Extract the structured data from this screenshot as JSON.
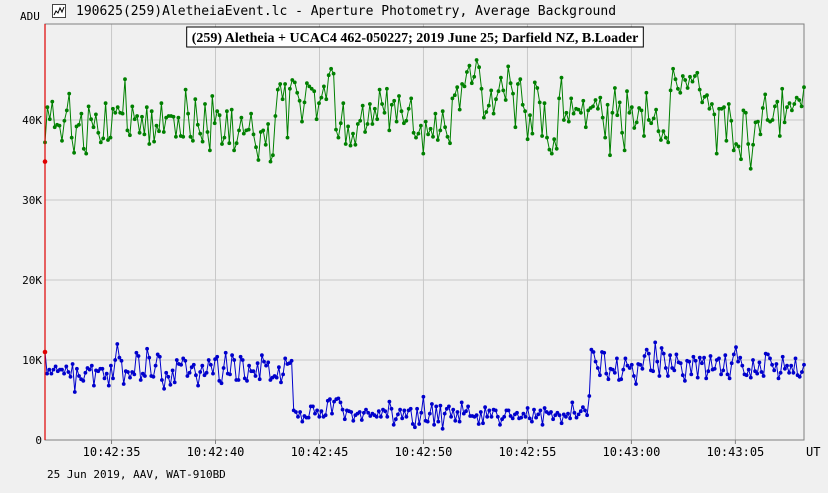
{
  "window": {
    "title": "190625(259)AletheiaEvent.lc - Aperture Photometry, Average Background",
    "icon": "chart-file-icon"
  },
  "footer": {
    "text": "25 Jun 2019, AAV, WAT-910BD"
  },
  "colors": {
    "background": "#f0f0f0",
    "grid": "#c8c8c8",
    "frame": "#808080",
    "series_upper": "#008000",
    "series_lower": "#0000cc",
    "cursor": "#e00000"
  },
  "chart_data": {
    "type": "line",
    "title": "(259) Aletheia + UCAC4 462-050227; 2019 June 25; Darfield NZ, B.Loader",
    "ylabel": "ADU",
    "xlabel": "UT",
    "ylim": [
      0,
      52000
    ],
    "yticks": [
      0,
      10000,
      20000,
      30000,
      40000
    ],
    "ytick_labels": [
      "0",
      "10K",
      "20K",
      "30K",
      "40K"
    ],
    "xlim": [
      "10:42:31.8",
      "10:43:08.3"
    ],
    "xticks": [
      "10:42:35",
      "10:42:40",
      "10:42:45",
      "10:42:50",
      "10:42:55",
      "10:43:00",
      "10:43:05"
    ],
    "grid": true,
    "cursor_time": "10:42:31.8",
    "cursor_values": [
      34800,
      11000
    ],
    "series": [
      {
        "values": [
          37200,
          41600,
          40100,
          42300,
          39100,
          39400,
          39300,
          37400,
          39900,
          41200,
          43300,
          37800,
          35900,
          39200,
          39400,
          40800,
          36400,
          35800,
          41700,
          40100,
          39100,
          40700,
          38400,
          37200,
          37700,
          42100,
          37500,
          37800,
          41400,
          40900,
          41600,
          40900,
          40800,
          45100,
          38700,
          38100,
          41700,
          40100,
          40500,
          38400,
          40400,
          38200,
          41600,
          37000,
          41100,
          37300,
          39300,
          38600,
          42100,
          38500,
          40300,
          40500,
          40500,
          40400,
          37900,
          40300,
          38000,
          37900,
          43800,
          40800,
          37900,
          37400,
          42600,
          39400,
          38300,
          37300,
          42000,
          38500,
          36200,
          43000,
          39600,
          41100,
          40600,
          37000,
          37800,
          41100,
          37100,
          41300,
          36200,
          37100,
          38700,
          40300,
          38300,
          38700,
          38800,
          40800,
          38200,
          36600,
          35000,
          38500,
          38700,
          36900,
          39500,
          34800,
          35600,
          40500,
          43800,
          44500,
          42600,
          44500,
          37800,
          43900,
          45000,
          44700,
          43400,
          42400,
          39800,
          42200,
          44600,
          44200,
          43900,
          43600,
          40100,
          42100,
          42800,
          44200,
          42600,
          45600,
          46400,
          45800,
          38800,
          37800,
          39600,
          42100,
          37000,
          39200,
          36800,
          38300,
          36900,
          39500,
          39900,
          41800,
          38500,
          39500,
          42000,
          39500,
          41400,
          40100,
          43800,
          42000,
          40900,
          43900,
          38700,
          41900,
          42400,
          39800,
          43000,
          41100,
          39600,
          39900,
          41400,
          42700,
          38400,
          37800,
          38300,
          39300,
          35800,
          39800,
          38200,
          38900,
          37900,
          40800,
          37500,
          38700,
          41100,
          39100,
          37900,
          37100,
          42700,
          43100,
          44100,
          41300,
          44500,
          44200,
          46000,
          46800,
          44600,
          45400,
          47500,
          46600,
          43900,
          40300,
          41000,
          41800,
          43700,
          40800,
          42600,
          43600,
          45300,
          43700,
          42500,
          46700,
          44600,
          43300,
          39100,
          44500,
          45100,
          41900,
          41100,
          37600,
          40600,
          38300,
          44700,
          44000,
          42200,
          38000,
          42100,
          37800,
          36300,
          35800,
          37600,
          36400,
          42700,
          45300,
          40000,
          40900,
          39800,
          42700,
          40800,
          41400,
          41300,
          40900,
          42400,
          39100,
          41200,
          41500,
          41700,
          42500,
          41400,
          42800,
          40300,
          37800,
          41900,
          35600,
          40900,
          44000,
          40600,
          42200,
          38400,
          36200,
          43600,
          40900,
          41600,
          39000,
          39700,
          41500,
          41200,
          38000,
          43400,
          40000,
          39600,
          40200,
          41300,
          38600,
          37500,
          38600,
          37800,
          37200,
          43700,
          46400,
          45100,
          43900,
          43400,
          45500,
          45000,
          44000,
          45400,
          44800,
          45500,
          45900,
          43800,
          42200,
          42900,
          43100,
          41400,
          42000,
          40700,
          35800,
          41400,
          41400,
          41600,
          37400,
          42000,
          39900,
          36200,
          37000,
          36700,
          35100,
          41200,
          40900,
          37000,
          33900,
          36900,
          39700,
          39800,
          38200,
          41500,
          43200,
          40000,
          39800,
          40000,
          41700,
          42300,
          38000,
          43900,
          39700,
          41600,
          42100,
          41200,
          42000,
          42800,
          42500,
          41700,
          44100
        ]
      },
      {
        "values": [
          11000,
          8300,
          8800,
          8300,
          8800,
          9200,
          8600,
          8800,
          8800,
          8300,
          9200,
          8500,
          7900,
          9500,
          6000,
          8900,
          8000,
          7600,
          7400,
          8400,
          9000,
          8800,
          9300,
          6800,
          8700,
          8600,
          8900,
          8900,
          7700,
          8300,
          6800,
          9300,
          7700,
          10000,
          12000,
          10300,
          9900,
          7000,
          8600,
          8500,
          7800,
          8500,
          8200,
          10900,
          10500,
          7500,
          8300,
          8000,
          11400,
          10300,
          8000,
          7900,
          9300,
          10700,
          10400,
          7500,
          6400,
          8400,
          7900,
          6900,
          8700,
          7200,
          10000,
          9500,
          9400,
          10200,
          9900,
          8000,
          8400,
          9100,
          9400,
          8100,
          6800,
          8500,
          9300,
          8100,
          8400,
          10000,
          9400,
          8300,
          10100,
          10400,
          7400,
          7100,
          9000,
          10900,
          8300,
          8200,
          10600,
          10000,
          7500,
          7500,
          10400,
          10000,
          7700,
          7400,
          9300,
          8600,
          8600,
          8000,
          9600,
          7600,
          10600,
          9800,
          9300,
          9700,
          7500,
          7800,
          8000,
          7800,
          9100,
          7200,
          8200,
          10200,
          9500,
          9600,
          9900,
          3700,
          3500,
          2900,
          3500,
          2300,
          3000,
          2800,
          2800,
          4200,
          4200,
          3300,
          3700,
          2900,
          3600,
          2900,
          3100,
          4900,
          5100,
          3300,
          4800,
          5100,
          5200,
          4700,
          3800,
          2600,
          3700,
          3600,
          3500,
          2400,
          3100,
          3300,
          3500,
          2500,
          3400,
          3800,
          3400,
          3000,
          3300,
          3100,
          2900,
          3600,
          2900,
          3800,
          3600,
          2900,
          4800,
          3900,
          1900,
          2600,
          3200,
          3800,
          2700,
          3700,
          2900,
          3700,
          3900,
          2000,
          1600,
          3900,
          2000,
          3400,
          5400,
          2400,
          2300,
          3300,
          4500,
          1900,
          4200,
          2300,
          4300,
          1400,
          3300,
          3900,
          4200,
          2900,
          3800,
          2400,
          3500,
          2300,
          4700,
          3300,
          3600,
          4200,
          3000,
          3000,
          2900,
          3100,
          2000,
          3500,
          2100,
          4100,
          2900,
          3700,
          2900,
          3800,
          3700,
          2900,
          1900,
          2600,
          2900,
          3700,
          3700,
          3000,
          2700,
          3200,
          3400,
          2700,
          2800,
          3300,
          2900,
          4000,
          2700,
          2300,
          3800,
          2800,
          3200,
          3700,
          1900,
          4000,
          3500,
          3300,
          3500,
          2600,
          3100,
          3400,
          3100,
          2100,
          3200,
          2900,
          3300,
          2700,
          4700,
          3400,
          2800,
          3200,
          3600,
          4100,
          3700,
          3100,
          5500,
          11300,
          11000,
          9800,
          9000,
          8100,
          11000,
          10900,
          8300,
          7600,
          8900,
          8800,
          8400,
          10200,
          7500,
          7600,
          8800,
          10200,
          9300,
          9000,
          9400,
          8000,
          7000,
          9500,
          9400,
          8900,
          10500,
          11300,
          10800,
          8700,
          8600,
          12200,
          9800,
          8000,
          11500,
          10800,
          9000,
          8000,
          10600,
          9000,
          8700,
          10700,
          9700,
          9600,
          8100,
          7400,
          9900,
          9800,
          8200,
          10400,
          9900,
          7800,
          10300,
          9600,
          10300,
          7700,
          8600,
          10500,
          8800,
          8900,
          10000,
          10200,
          8200,
          8700,
          10600,
          8200,
          7700,
          9600,
          10700,
          11600,
          9800,
          10300,
          9300,
          8200,
          8100,
          8800,
          7800,
          10000,
          8600,
          8300,
          9700,
          8500,
          8000,
          10800,
          10700,
          10200,
          9400,
          8700,
          9500,
          7700,
          8400,
          10400,
          8900,
          9300,
          8400,
          9300,
          8400,
          10200,
          8100,
          7900,
          8500,
          9400
        ]
      }
    ]
  }
}
